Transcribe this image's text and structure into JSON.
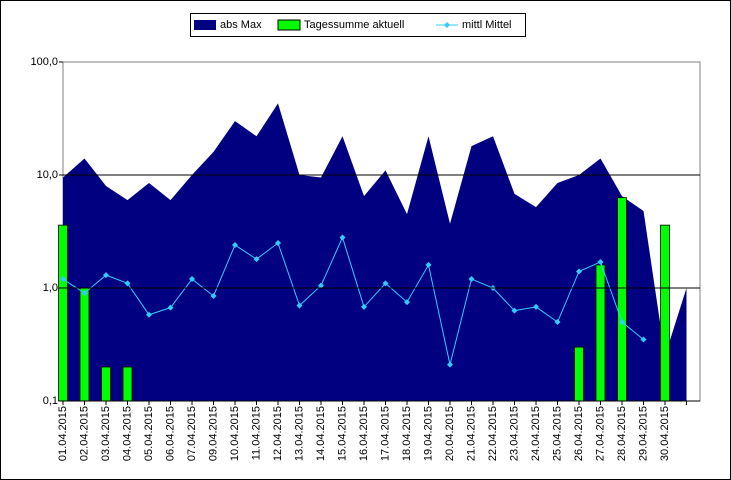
{
  "chart_data": {
    "type": "combo",
    "categories": [
      "01.04.2015",
      "02.04.2015",
      "03.04.2015",
      "04.04.2015",
      "05.04.2015",
      "06.04.2015",
      "07.04.2015",
      "09.04.2015",
      "10.04.2015",
      "11.04.2015",
      "12.04.2015",
      "13.04.2015",
      "14.04.2015",
      "15.04.2015",
      "16.04.2015",
      "17.04.2015",
      "18.04.2015",
      "19.04.2015",
      "20.04.2015",
      "21.04.2015",
      "22.04.2015",
      "23.04.2015",
      "24.04.2015",
      "25.04.2015",
      "26.04.2015",
      "27.04.2015",
      "28.04.2015",
      "29.04.2015",
      "30.04.2015",
      null
    ],
    "series": [
      {
        "name": "abs Max",
        "type": "area",
        "color": "#000080",
        "values": [
          9.5,
          14,
          8,
          6,
          8.5,
          6,
          10,
          16,
          30,
          22,
          43,
          10,
          9.5,
          22,
          6.5,
          11,
          4.5,
          22,
          3.7,
          18,
          22,
          6.8,
          5.2,
          8.5,
          10,
          14,
          6.5,
          4.8,
          0.25,
          1.0
        ]
      },
      {
        "name": "Tagessumme aktuell",
        "type": "bar",
        "color": "#00ff00",
        "values": [
          3.6,
          1.0,
          0.2,
          0.2,
          null,
          null,
          null,
          null,
          null,
          null,
          null,
          null,
          null,
          null,
          null,
          null,
          null,
          null,
          null,
          null,
          null,
          null,
          null,
          null,
          0.3,
          1.6,
          6.3,
          null,
          3.6,
          null
        ]
      },
      {
        "name": "mittl Mittel",
        "type": "line",
        "color": "#33ccff",
        "values": [
          1.2,
          0.9,
          1.3,
          1.1,
          0.58,
          0.67,
          1.2,
          0.85,
          2.4,
          1.8,
          2.5,
          0.7,
          1.05,
          2.8,
          0.68,
          1.1,
          0.75,
          1.6,
          0.21,
          1.2,
          1.0,
          0.63,
          0.68,
          0.5,
          1.4,
          1.7,
          0.5,
          0.35,
          null,
          null
        ]
      }
    ],
    "log_scale": true,
    "ylim": [
      0.1,
      100
    ],
    "yticks": [
      {
        "value": 0.1,
        "label": "0,1"
      },
      {
        "value": 1,
        "label": "1,0"
      },
      {
        "value": 10,
        "label": "10,0"
      },
      {
        "value": 100,
        "label": "100,0"
      }
    ],
    "grid": true,
    "legend": "top"
  }
}
